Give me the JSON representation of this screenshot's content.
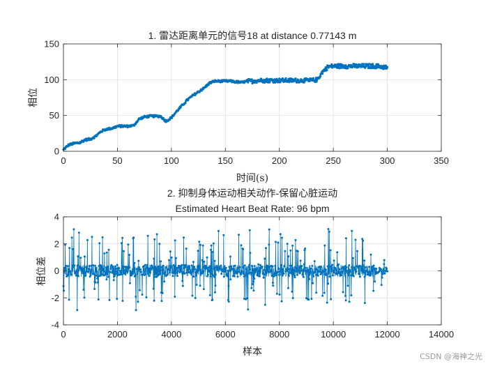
{
  "chart_data": [
    {
      "type": "line",
      "title": "1. 雷达距离单元的信号18 at distance 0.77143 m",
      "xlabel": "时间(s)",
      "ylabel": "相位",
      "xlim": [
        0,
        350
      ],
      "ylim": [
        0,
        150
      ],
      "xticks": [
        0,
        50,
        100,
        150,
        200,
        250,
        300,
        350
      ],
      "yticks": [
        0,
        50,
        100,
        150
      ],
      "grid": true,
      "color": "#0072BD",
      "marker": "dot",
      "series": [
        {
          "x": [
            0,
            2,
            5,
            10,
            15,
            20,
            25,
            30,
            35,
            40,
            45,
            50,
            55,
            60,
            65,
            70,
            75,
            80,
            85,
            90,
            95,
            100,
            105,
            110,
            115,
            120,
            125,
            130,
            135,
            140,
            145,
            150,
            155,
            160,
            165,
            170,
            175,
            180,
            190,
            200,
            210,
            220,
            230,
            235,
            240,
            245,
            250,
            260,
            270,
            280,
            290,
            300
          ],
          "y": [
            2,
            5,
            9,
            11,
            12,
            16,
            17,
            21,
            28,
            31,
            32,
            35,
            35,
            35,
            36,
            45,
            48,
            49,
            49,
            49,
            42,
            47,
            56,
            64,
            72,
            78,
            83,
            88,
            95,
            98,
            98,
            98,
            98,
            97,
            96,
            98,
            98,
            99,
            99,
            99,
            99,
            99,
            99,
            100,
            111,
            118,
            119,
            119,
            119,
            119,
            119,
            117
          ]
        }
      ]
    },
    {
      "type": "line",
      "title": "2. 抑制身体运动相关动作-保留心脏运动",
      "subtitle": "Estimated Heart Beat Rate: 96 bpm",
      "xlabel": "样本",
      "ylabel": "相位差",
      "xlim": [
        0,
        14000
      ],
      "ylim": [
        -4,
        4
      ],
      "xticks": [
        0,
        2000,
        4000,
        6000,
        8000,
        10000,
        12000,
        14000
      ],
      "yticks": [
        -4,
        -2,
        0,
        2,
        4
      ],
      "grid": true,
      "color": "#0072BD",
      "marker": "dot",
      "samples": 12000,
      "value_range": [
        -2.9,
        3.1
      ]
    }
  ],
  "watermark": "CSDN @海神之光"
}
